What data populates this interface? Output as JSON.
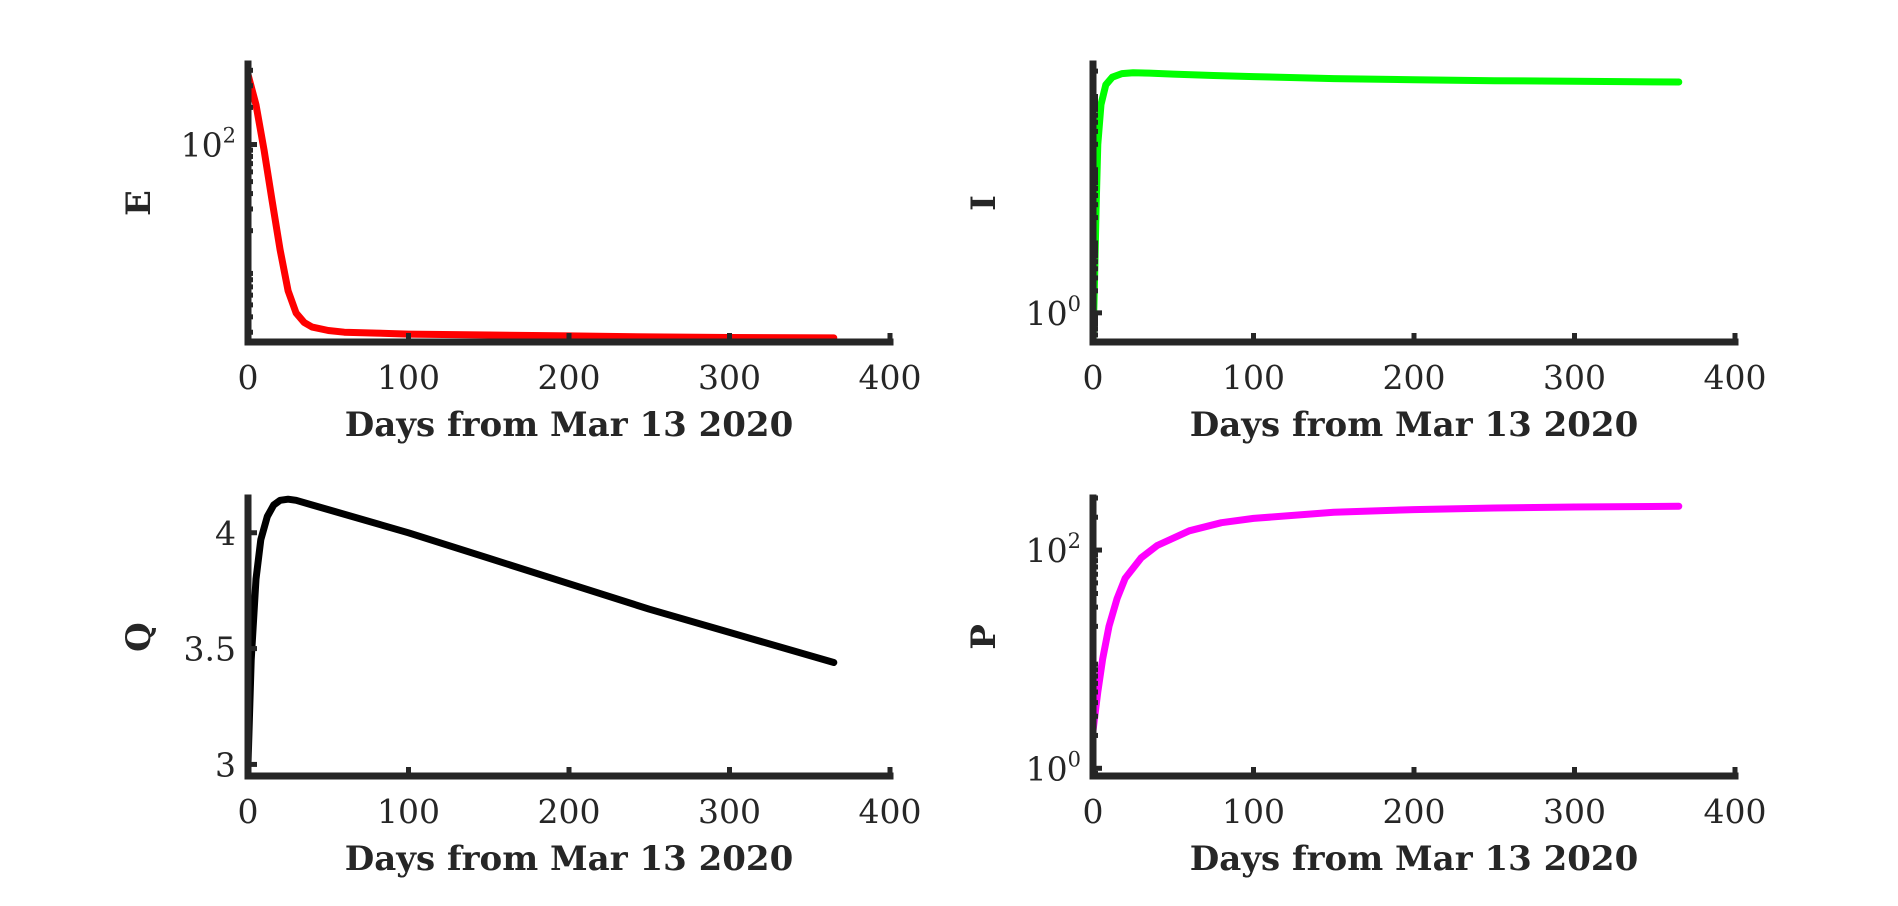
{
  "chart_data": [
    {
      "type": "line",
      "xlabel": "Days from Mar 13 2020",
      "ylabel": "E",
      "yscale": "log",
      "xlim": [
        0,
        400
      ],
      "ylim": [
        2.5,
        450
      ],
      "xticks": [
        0,
        100,
        200,
        300,
        400
      ],
      "yticks": [
        {
          "base": "10",
          "exp": "2",
          "value": 100
        }
      ],
      "grid": false,
      "series": [
        {
          "color": "#ff0000",
          "x": [
            0,
            5,
            10,
            15,
            20,
            25,
            30,
            35,
            40,
            50,
            60,
            80,
            100,
            150,
            200,
            250,
            300,
            365
          ],
          "y": [
            370,
            210,
            90,
            35,
            14,
            6.5,
            4.3,
            3.6,
            3.3,
            3.1,
            3.0,
            2.95,
            2.9,
            2.85,
            2.8,
            2.75,
            2.72,
            2.7
          ]
        }
      ]
    },
    {
      "type": "line",
      "xlabel": "Days from Mar 13 2020",
      "ylabel": "I",
      "yscale": "log",
      "xlim": [
        0,
        400
      ],
      "ylim": [
        0.4,
        2500
      ],
      "xticks": [
        0,
        100,
        200,
        300,
        400
      ],
      "yticks": [
        {
          "base": "10",
          "exp": "0",
          "value": 1
        }
      ],
      "grid": false,
      "series": [
        {
          "color": "#00ff00",
          "x": [
            0,
            1,
            2,
            3,
            5,
            8,
            12,
            18,
            25,
            35,
            50,
            75,
            100,
            150,
            200,
            250,
            300,
            365
          ],
          "y": [
            0.4,
            3,
            30,
            200,
            700,
            1300,
            1650,
            1850,
            1900,
            1880,
            1820,
            1740,
            1680,
            1580,
            1520,
            1480,
            1450,
            1420
          ]
        }
      ]
    },
    {
      "type": "line",
      "xlabel": "Days from Mar 13 2020",
      "ylabel": "Q",
      "yscale": "linear",
      "xlim": [
        0,
        400
      ],
      "ylim": [
        2.95,
        4.15
      ],
      "xticks": [
        0,
        100,
        200,
        300,
        400
      ],
      "yticks": [
        {
          "label": "3",
          "value": 3
        },
        {
          "label": "3.5",
          "value": 3.5
        },
        {
          "label": "4",
          "value": 4
        }
      ],
      "grid": false,
      "series": [
        {
          "color": "#000000",
          "x": [
            0,
            2,
            5,
            8,
            12,
            16,
            20,
            25,
            30,
            40,
            60,
            100,
            150,
            200,
            250,
            300,
            365
          ],
          "y": [
            3.0,
            3.45,
            3.8,
            3.97,
            4.07,
            4.12,
            4.14,
            4.145,
            4.14,
            4.12,
            4.08,
            4.0,
            3.89,
            3.78,
            3.67,
            3.57,
            3.44
          ]
        }
      ]
    },
    {
      "type": "line",
      "xlabel": "Days from Mar 13 2020",
      "ylabel": "P",
      "yscale": "log",
      "xlim": [
        0,
        400
      ],
      "ylim": [
        0.85,
        300
      ],
      "xticks": [
        0,
        100,
        200,
        300,
        400
      ],
      "yticks": [
        {
          "base": "10",
          "exp": "0",
          "value": 1
        },
        {
          "base": "10",
          "exp": "2",
          "value": 100
        }
      ],
      "grid": false,
      "series": [
        {
          "color": "#ff00ff",
          "x": [
            0,
            3,
            6,
            10,
            15,
            20,
            30,
            40,
            60,
            80,
            100,
            150,
            200,
            250,
            300,
            365
          ],
          "y": [
            2.2,
            5,
            10,
            20,
            36,
            55,
            85,
            110,
            150,
            178,
            195,
            222,
            235,
            243,
            248,
            252
          ]
        }
      ]
    }
  ]
}
